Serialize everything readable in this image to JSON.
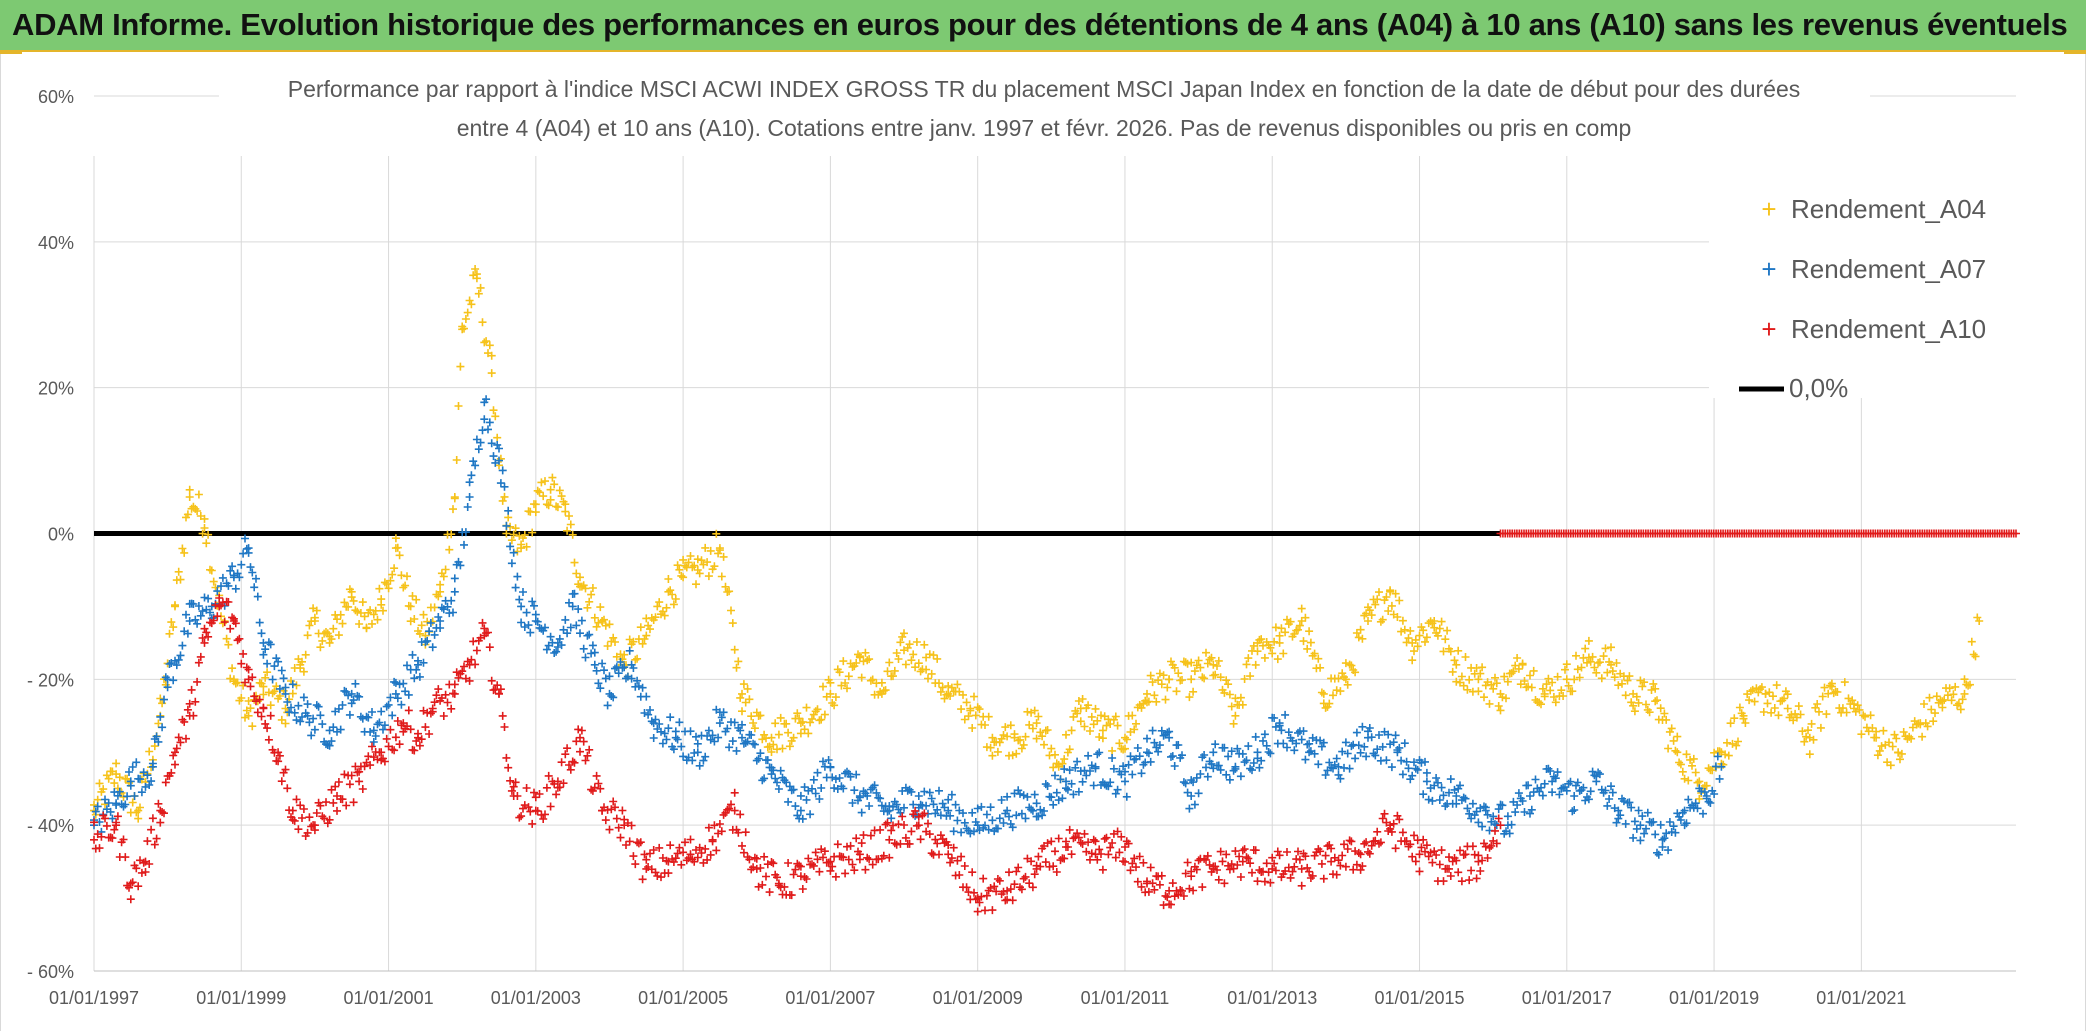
{
  "banner": {
    "title": "ADAM Informe. Evolution historique des performances en euros pour des détentions de 4 ans (A04) à 10 ans (A10) sans les revenus éventuels"
  },
  "colors": {
    "banner_bg": "#7dc972",
    "a04": "#f6c21a",
    "a07": "#1f77c4",
    "a10": "#e01b1b",
    "zero": "#000000",
    "grid": "#d9d9d9"
  },
  "chart_data": {
    "type": "scatter",
    "title_line1": "Performance  par rapport à l'indice MSCI ACWI INDEX GROSS TR  du placement MSCI Japan Index en fonction de la date de début pour des durées",
    "title_line2": "entre 4 (A04) et 10 ans (A10). Cotations entre janv. 1997 et févr. 2026. Pas de revenus disponibles ou pris en comp",
    "ylim": [
      -60,
      60
    ],
    "xlim": [
      1997.0,
      2023.1
    ],
    "y_ticks": [
      60,
      40,
      20,
      0,
      -20,
      -40,
      -60
    ],
    "y_tick_labels": [
      "60%",
      "40%",
      "20%",
      "0%",
      "- 20%",
      "- 40%",
      "- 60%"
    ],
    "x_ticks": [
      1997,
      1999,
      2001,
      2003,
      2005,
      2007,
      2009,
      2011,
      2013,
      2015,
      2017,
      2019,
      2021
    ],
    "x_tick_labels": [
      "01/01/1997",
      "01/01/1999",
      "01/01/2001",
      "01/01/2003",
      "01/01/2005",
      "01/01/2007",
      "01/01/2009",
      "01/01/2011",
      "01/01/2013",
      "01/01/2015",
      "01/01/2017",
      "01/01/2019",
      "01/01/2021"
    ],
    "legend_position": "top-right",
    "series": [
      {
        "name": "Rendement_A04",
        "marker": "+",
        "x": [
          1997.0,
          1997.3,
          1997.6,
          1997.9,
          1998.1,
          1998.3,
          1998.5,
          1998.7,
          1998.9,
          1999.1,
          1999.3,
          1999.6,
          1999.8,
          2000.0,
          2000.2,
          2000.5,
          2000.7,
          2000.9,
          2001.1,
          2001.3,
          2001.5,
          2001.7,
          2001.9,
          2002.0,
          2002.2,
          2002.4,
          2002.6,
          2002.8,
          2003.0,
          2003.2,
          2003.4,
          2003.6,
          2003.9,
          2004.2,
          2004.5,
          2004.8,
          2005.0,
          2005.2,
          2005.5,
          2005.8,
          2006.2,
          2006.6,
          2007.0,
          2007.4,
          2007.7,
          2008.0,
          2008.3,
          2008.6,
          2008.9,
          2009.2,
          2009.5,
          2009.8,
          2010.1,
          2010.4,
          2010.7,
          2011.0,
          2011.3,
          2011.6,
          2011.9,
          2012.2,
          2012.5,
          2012.8,
          2013.1,
          2013.4,
          2013.7,
          2014.0,
          2014.3,
          2014.6,
          2014.9,
          2015.2,
          2015.5,
          2015.8,
          2016.1,
          2016.4,
          2016.7,
          2017.0,
          2017.3,
          2017.6,
          2017.9,
          2018.2,
          2018.5,
          2018.8,
          2019.1,
          2019.4,
          2019.7,
          2020.0,
          2020.3,
          2020.6,
          2020.9,
          2021.2,
          2021.5,
          2021.8,
          2022.1,
          2022.4,
          2022.6
        ],
        "y": [
          -38,
          -33,
          -38,
          -25,
          -10,
          5,
          2,
          -10,
          -20,
          -25,
          -21,
          -24,
          -18,
          -12,
          -15,
          -8,
          -13,
          -9,
          -2,
          -10,
          -14,
          -8,
          5,
          28,
          35,
          22,
          0,
          -2,
          4,
          6,
          3,
          -6,
          -12,
          -18,
          -14,
          -8,
          -6,
          -5,
          -2,
          -22,
          -28,
          -26,
          -22,
          -17,
          -22,
          -16,
          -17,
          -22,
          -24,
          -28,
          -28,
          -26,
          -32,
          -24,
          -27,
          -28,
          -22,
          -20,
          -20,
          -18,
          -25,
          -15,
          -15,
          -12,
          -22,
          -20,
          -12,
          -8,
          -15,
          -12,
          -18,
          -20,
          -22,
          -18,
          -22,
          -20,
          -17,
          -18,
          -22,
          -23,
          -30,
          -34,
          -30,
          -25,
          -22,
          -24,
          -28,
          -21,
          -24,
          -28,
          -30,
          -26,
          -23,
          -22,
          -12
        ]
      },
      {
        "name": "Rendement_A07",
        "marker": "+",
        "x": [
          1997.0,
          1997.3,
          1997.5,
          1997.8,
          1998.0,
          1998.3,
          1998.6,
          1998.9,
          1999.1,
          1999.3,
          1999.6,
          1999.9,
          2000.2,
          2000.5,
          2000.8,
          2001.1,
          2001.4,
          2001.7,
          2001.9,
          2002.1,
          2002.3,
          2002.5,
          2002.8,
          2003.0,
          2003.3,
          2003.5,
          2003.8,
          2004.0,
          2004.3,
          2004.6,
          2004.9,
          2005.2,
          2005.5,
          2005.8,
          2006.2,
          2006.6,
          2007.0,
          2007.4,
          2007.8,
          2008.2,
          2008.6,
          2009.0,
          2009.4,
          2009.8,
          2010.2,
          2010.6,
          2011.0,
          2011.3,
          2011.6,
          2011.9,
          2012.2,
          2012.5,
          2012.8,
          2013.1,
          2013.5,
          2013.9,
          2014.3,
          2014.7,
          2015.1,
          2015.5,
          2015.9,
          2016.2,
          2016.5,
          2016.8,
          2017.1,
          2017.4,
          2017.7,
          2018.0,
          2018.3,
          2018.6,
          2018.9,
          2019.1
        ],
        "y": [
          -40,
          -37,
          -34,
          -32,
          -20,
          -12,
          -10,
          -6,
          -2,
          -15,
          -22,
          -25,
          -27,
          -22,
          -27,
          -22,
          -18,
          -12,
          -8,
          5,
          18,
          10,
          -10,
          -12,
          -15,
          -10,
          -18,
          -22,
          -18,
          -26,
          -28,
          -30,
          -26,
          -28,
          -33,
          -38,
          -32,
          -36,
          -38,
          -36,
          -38,
          -40,
          -38,
          -37,
          -34,
          -32,
          -34,
          -30,
          -28,
          -36,
          -30,
          -32,
          -30,
          -26,
          -30,
          -32,
          -28,
          -30,
          -34,
          -36,
          -38,
          -40,
          -36,
          -34,
          -36,
          -34,
          -38,
          -40,
          -42,
          -38,
          -36,
          -32
        ]
      },
      {
        "name": "Rendement_A10",
        "marker": "+",
        "x": [
          1997.0,
          1997.3,
          1997.5,
          1997.7,
          1997.9,
          1998.1,
          1998.3,
          1998.5,
          1998.7,
          1998.9,
          1999.1,
          1999.3,
          1999.5,
          1999.7,
          2000.0,
          2000.3,
          2000.6,
          2000.9,
          2001.2,
          2001.4,
          2001.6,
          2001.9,
          2002.1,
          2002.3,
          2002.5,
          2002.7,
          2003.0,
          2003.3,
          2003.6,
          2003.9,
          2004.2,
          2004.5,
          2004.8,
          2005.1,
          2005.4,
          2005.7,
          2006.0,
          2006.3,
          2006.6,
          2007.0,
          2007.4,
          2007.8,
          2008.2,
          2008.6,
          2009.0,
          2009.4,
          2009.8,
          2010.2,
          2010.6,
          2011.0,
          2011.3,
          2011.6,
          2011.9,
          2012.2,
          2012.6,
          2013.0,
          2013.4,
          2013.8,
          2014.2,
          2014.6,
          2015.0,
          2015.4,
          2015.8,
          2016.1
        ],
        "y": [
          -42,
          -40,
          -48,
          -45,
          -38,
          -30,
          -25,
          -15,
          -10,
          -12,
          -20,
          -24,
          -30,
          -38,
          -40,
          -36,
          -34,
          -30,
          -26,
          -28,
          -24,
          -22,
          -18,
          -14,
          -22,
          -36,
          -38,
          -34,
          -28,
          -38,
          -40,
          -46,
          -45,
          -44,
          -42,
          -38,
          -46,
          -48,
          -47,
          -45,
          -44,
          -42,
          -40,
          -44,
          -50,
          -49,
          -46,
          -43,
          -44,
          -43,
          -48,
          -49,
          -47,
          -46,
          -45,
          -46,
          -46,
          -45,
          -44,
          -40,
          -44,
          -46,
          -45,
          -40
        ]
      },
      {
        "name": "Rendement_A10 (0%)",
        "marker": "+",
        "x_range": [
          2016.1,
          2023.1
        ],
        "value": 0
      }
    ],
    "zero_line": {
      "name": "0,0%",
      "value": 0,
      "x_range": [
        1997.0,
        2016.1
      ]
    }
  }
}
